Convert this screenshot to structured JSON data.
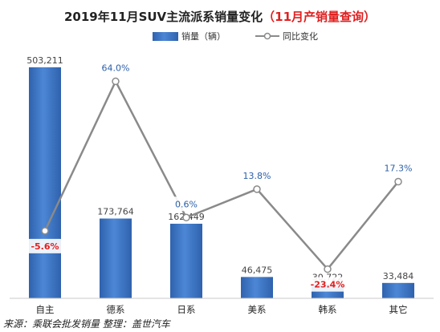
{
  "chart_data": {
    "type": "bar",
    "title": "2019年11月SUV主流派系销量变化",
    "subtitle": "（11月产销量查询）",
    "categories": [
      "自主",
      "德系",
      "日系",
      "美系",
      "韩系",
      "其它"
    ],
    "series": [
      {
        "name": "销量（辆）",
        "type": "bar",
        "values": [
          503211,
          173764,
          162449,
          46475,
          30722,
          33484
        ],
        "labels": [
          "503,211",
          "173,764",
          "162,449",
          "46,475",
          "30,722",
          "33,484"
        ],
        "color": "#3a74c4"
      },
      {
        "name": "同比变化",
        "type": "line",
        "values": [
          -5.6,
          64.0,
          0.6,
          13.8,
          -23.4,
          17.3
        ],
        "labels": [
          "-5.6%",
          "64.0%",
          "0.6%",
          "13.8%",
          "-23.4%",
          "17.3%"
        ],
        "color": "#8a8a8a"
      }
    ],
    "bar_ylim": [
      0,
      510000
    ],
    "line_ylim": [
      -37,
      72
    ],
    "legend_position": "top",
    "grid": false,
    "negative_label_color": "#e02020",
    "positive_label_color": "#2a5fa8",
    "subtitle_color": "#e02020"
  },
  "source_note": "来源：乘联会批发销量  整理：盖世汽车"
}
